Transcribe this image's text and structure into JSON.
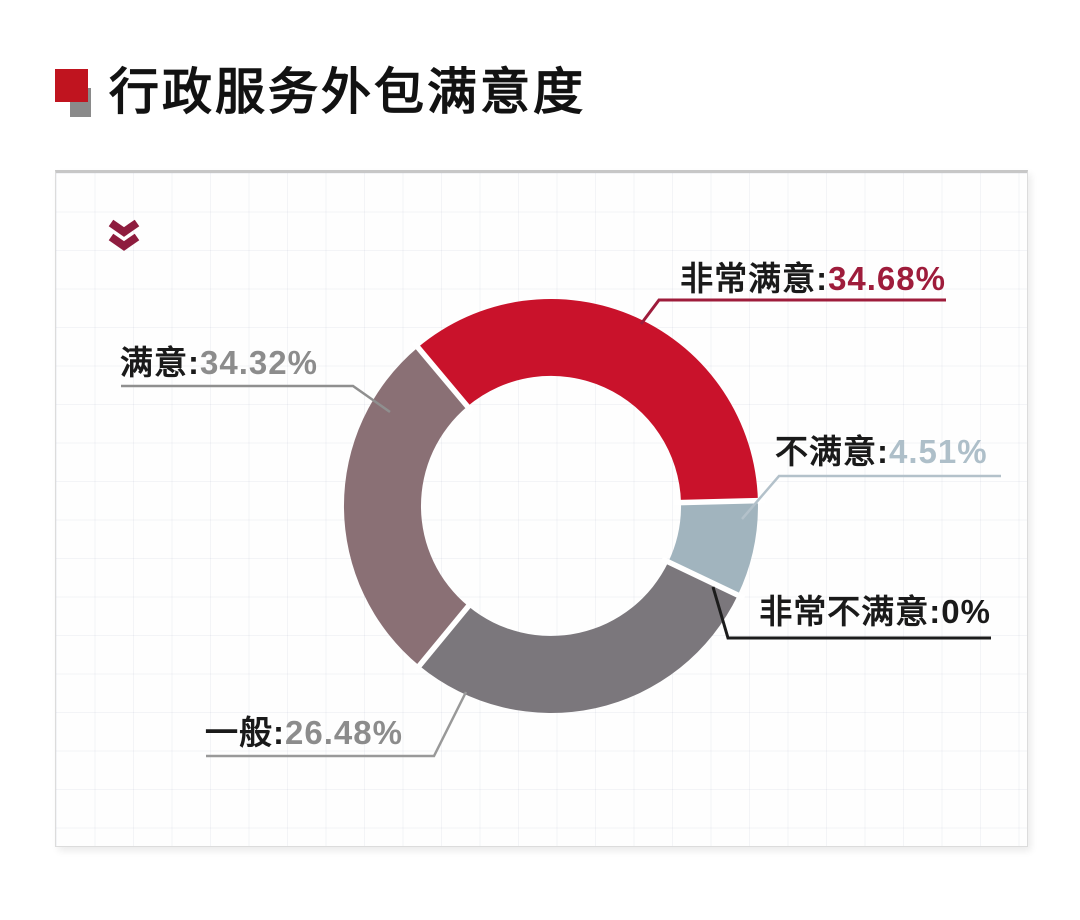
{
  "header": {
    "title": "行政服务外包满意度",
    "bullet_red": "#c0141f",
    "bullet_gray": "#8a8a8a"
  },
  "panel": {
    "collapse_icon": "double-chevron-down",
    "collapse_icon_color": "#8e1c3e"
  },
  "chart_data": {
    "type": "pie",
    "variant": "donut",
    "title": "行政服务外包满意度",
    "legend_position": "callout-labels",
    "separator": ":",
    "segments": [
      {
        "label": "非常满意",
        "value": 34.68,
        "value_text": "34.68%",
        "color": "#c9122b",
        "value_color": "#9e1c3b",
        "leader_color": "#9e1c3b",
        "start_angle": 320,
        "end_angle": 448.5
      },
      {
        "label": "满意",
        "value": 34.32,
        "value_text": "34.32%",
        "color": "#8a7075",
        "value_color": "#8c8c8c",
        "leader_color": "#8f8f8f",
        "start_angle": 219.5,
        "end_angle": 320
      },
      {
        "label": "一般",
        "value": 26.48,
        "value_text": "26.48%",
        "color": "#7b777c",
        "value_color": "#8c8c8c",
        "leader_color": "#999999",
        "start_angle": 115.5,
        "end_angle": 219.5
      },
      {
        "label": "不满意",
        "value": 4.51,
        "value_text": "4.51%",
        "color": "#a1b4be",
        "value_color": "#aebfc9",
        "leader_color": "#b3c1ca",
        "start_angle": 88.5,
        "end_angle": 115.5
      },
      {
        "label": "非常不满意",
        "value": 0,
        "value_text": "0%",
        "color": null,
        "value_color": "#1a1a1a",
        "leader_color": "#1c1c1c",
        "start_angle": 115.5,
        "end_angle": 115.5
      }
    ]
  }
}
